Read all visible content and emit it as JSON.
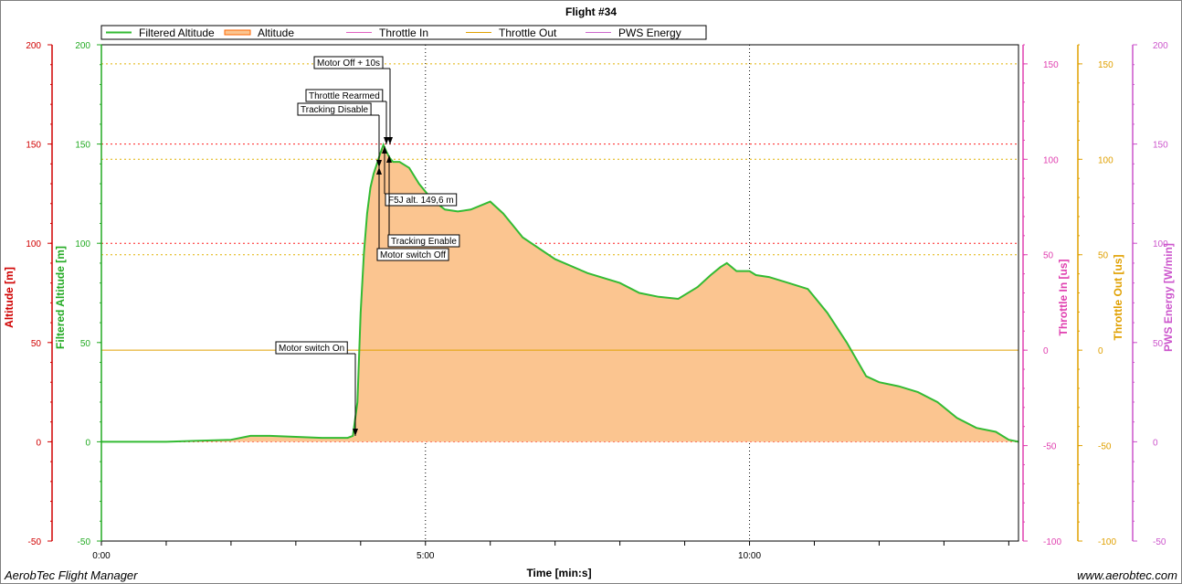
{
  "chart_data": {
    "type": "area",
    "title": "Flight #34",
    "xlabel": "Time [min:s]",
    "x_ticks": [
      {
        "value": 0,
        "label": "0:00"
      },
      {
        "value": 5,
        "label": "5:00"
      },
      {
        "value": 10,
        "label": "10:00"
      }
    ],
    "xlim": [
      0,
      14.15
    ],
    "y_axes": [
      {
        "label": "Altitude [m]",
        "color": "#d00000",
        "range": [
          -50,
          200
        ],
        "ticks": [
          -50,
          0,
          50,
          100,
          150,
          200
        ]
      },
      {
        "label": "Filtered Altitude [m]",
        "color": "#22aa22",
        "range": [
          -50,
          200
        ],
        "ticks": [
          -50,
          0,
          50,
          100,
          150,
          200
        ]
      },
      {
        "label": "Throttle In [us]",
        "color": "#e040b0",
        "range": [
          -100,
          160
        ],
        "ticks": [
          -100,
          -50,
          0,
          50,
          100,
          150
        ]
      },
      {
        "label": "Throttle Out [us]",
        "color": "#e0a000",
        "range": [
          -100,
          160
        ],
        "ticks": [
          -100,
          -50,
          0,
          50,
          100,
          150
        ]
      },
      {
        "label": "PWS Energy [W/min]",
        "color": "#cc55cc",
        "range": [
          -50,
          200
        ],
        "ticks": [
          -50,
          0,
          50,
          100,
          150,
          200
        ]
      }
    ],
    "legend": {
      "placement": "top",
      "entries": [
        {
          "name": "Filtered Altitude",
          "color": "#33bb33"
        },
        {
          "name": "Altitude",
          "color": "#ff6600"
        },
        {
          "name": "Throttle In",
          "color": "#e060c0"
        },
        {
          "name": "Throttle Out",
          "color": "#e0a000"
        },
        {
          "name": "PWS Energy",
          "color": "#cc66cc"
        }
      ]
    },
    "series": [
      {
        "name": "Filtered Altitude",
        "x": [
          0,
          0.5,
          1.0,
          1.5,
          2.0,
          2.3,
          2.6,
          3.0,
          3.4,
          3.8,
          3.88,
          3.95,
          4.0,
          4.05,
          4.1,
          4.15,
          4.2,
          4.25,
          4.3,
          4.35,
          4.4,
          4.45,
          4.5,
          4.6,
          4.75,
          4.9,
          5.1,
          5.3,
          5.5,
          5.7,
          6.0,
          6.2,
          6.5,
          7.0,
          7.5,
          8.0,
          8.3,
          8.6,
          8.9,
          9.2,
          9.4,
          9.55,
          9.65,
          9.8,
          10.0,
          10.1,
          10.3,
          10.6,
          10.9,
          11.2,
          11.5,
          11.8,
          12.0,
          12.3,
          12.6,
          12.9,
          13.2,
          13.5,
          13.8,
          14.0,
          14.15
        ],
        "y": [
          0,
          0,
          0,
          0.5,
          1,
          3,
          3,
          2.5,
          2,
          2,
          3,
          20,
          65,
          95,
          115,
          128,
          135,
          140,
          145,
          149.6,
          146,
          143,
          141,
          141,
          138,
          130,
          122,
          117,
          116,
          117,
          121,
          115,
          103,
          92,
          85,
          80,
          75,
          73,
          72,
          78,
          84,
          88,
          90,
          86,
          86,
          84,
          83,
          80,
          77,
          65,
          50,
          33,
          30,
          28,
          25,
          20,
          12,
          7,
          5,
          1,
          0
        ]
      },
      {
        "name": "Throttle Out",
        "x": [
          0,
          14.15
        ],
        "y": [
          0,
          0
        ]
      }
    ],
    "reference_lines": [
      {
        "axis": "altitude",
        "value": 150
      },
      {
        "axis": "altitude",
        "value": 100
      },
      {
        "axis": "altitude",
        "value": 0
      },
      {
        "axis": "throttle",
        "value": 150
      },
      {
        "axis": "throttle",
        "value": 100
      },
      {
        "axis": "throttle",
        "value": 50
      }
    ],
    "annotations": [
      {
        "text": "Motor Off + 10s",
        "x": 4.47,
        "y": 150
      },
      {
        "text": "Throttle Rearmed",
        "x": 4.43,
        "y": 150
      },
      {
        "text": "Tracking Disable",
        "x": 4.33,
        "y": 139
      },
      {
        "text": "F5J alt. 149,6 m",
        "x": 4.38,
        "y": 149.6
      },
      {
        "text": "Tracking Enable",
        "x": 4.45,
        "y": 143
      },
      {
        "text": "Motor switch Off",
        "x": 4.33,
        "y": 139
      },
      {
        "text": "Motor switch On",
        "x": 3.88,
        "y": 3
      }
    ]
  },
  "footer": {
    "app_name": "AerobTec Flight Manager",
    "website": "www.aerobtec.com"
  }
}
